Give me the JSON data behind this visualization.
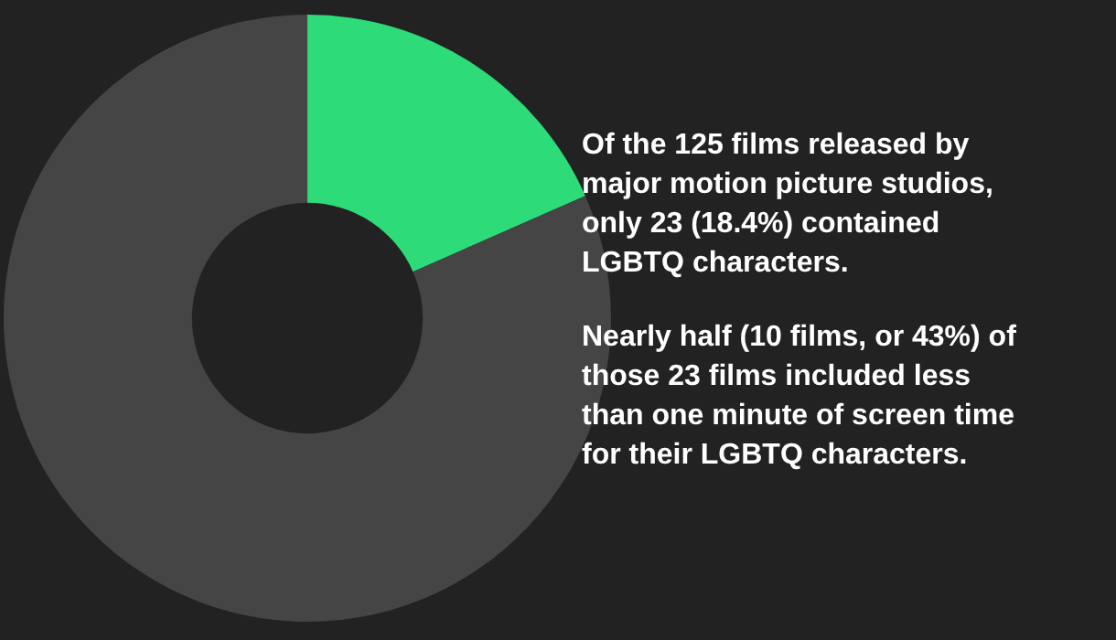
{
  "chart_data": {
    "type": "donut",
    "categories": [
      null,
      null
    ],
    "values": [
      18.4,
      81.6
    ],
    "colors": [
      "#2ddb78",
      "#454545"
    ],
    "annotations": [
      "Of the 125 films released by major motion picture studios, only 23 (18.4%) contained LGBTQ characters.",
      "Nearly half (10 films, or 43%) of those 23 films included less than one minute of screen time for their LGBTQ characters."
    ]
  }
}
